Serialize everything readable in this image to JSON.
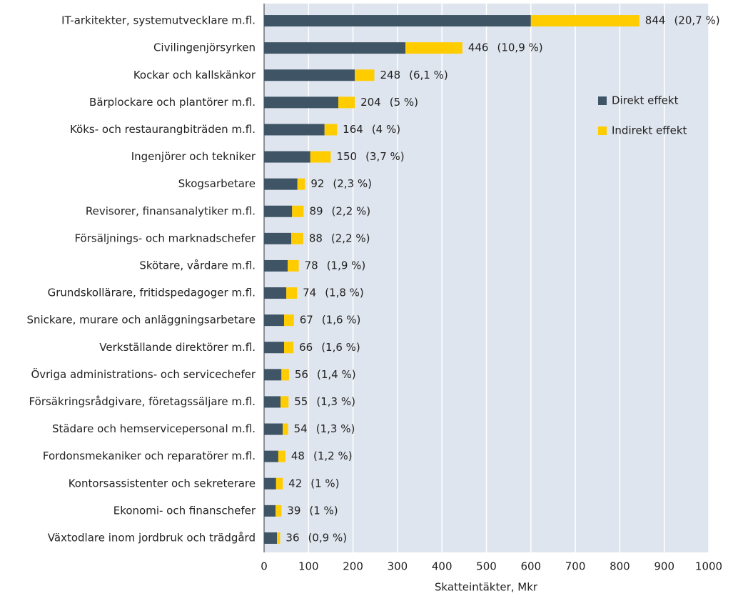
{
  "chart_data": {
    "type": "stacked-bar-horizontal",
    "x_label": "Skatteintäkter, Mkr",
    "categories": [
      "IT-arkitekter, systemutvecklare m.fl.",
      "Civilingenjörsyrken",
      "Kockar och kallskänkor",
      "Bärplockare och plantörer m.fl.",
      "Köks- och restaurangbiträden m.fl.",
      "Ingenjörer och tekniker",
      "Skogsarbetare",
      "Revisorer, finansanalytiker m.fl.",
      "Försäljnings- och marknadschefer",
      "Skötare, vårdare m.fl.",
      "Grundskollärare, fritidspedagoger m.fl.",
      "Snickare, murare och anläggningsarbetare",
      "Verkställande direktörer m.fl.",
      "Övriga administrations- och servicechefer",
      "Försäkringsrådgivare, företagssäljare m.fl.",
      "Städare och hemservicepersonal m.fl.",
      "Fordonsmekaniker och reparatörer m.fl.",
      "Kontorsassistenter och sekreterare",
      "Ekonomi- och finanschefer",
      "Växtodlare inom jordbruk och trädgård"
    ],
    "series": [
      {
        "name": "Direkt effekt",
        "color": "#3f5566",
        "values": [
          600,
          318,
          204,
          167,
          136,
          104,
          75,
          63,
          61,
          53,
          50,
          45,
          45,
          39,
          37,
          42,
          32,
          27,
          26,
          29
        ]
      },
      {
        "name": "Indirekt effekt",
        "color": "#ffcc00",
        "values": [
          244,
          128,
          44,
          37,
          28,
          46,
          17,
          26,
          27,
          25,
          24,
          22,
          21,
          17,
          18,
          12,
          16,
          15,
          13,
          7
        ]
      }
    ],
    "totals": [
      844,
      446,
      248,
      204,
      164,
      150,
      92,
      89,
      88,
      78,
      74,
      67,
      66,
      56,
      55,
      54,
      48,
      42,
      39,
      36
    ],
    "share_labels": [
      "(20,7 %)",
      "(10,9 %)",
      "(6,1 %)",
      "(5 %)",
      "(4 %)",
      "(3,7 %)",
      "(2,3 %)",
      "(2,2 %)",
      "(2,2 %)",
      "(1,9 %)",
      "(1,8 %)",
      "(1,6 %)",
      "(1,6 %)",
      "(1,4 %)",
      "(1,3 %)",
      "(1,3 %)",
      "(1,2 %)",
      "(1 %)",
      "(1 %)",
      "(0,9 %)"
    ],
    "xlim": [
      0,
      1000
    ],
    "xticks": [
      0,
      100,
      200,
      300,
      400,
      500,
      600,
      700,
      800,
      900,
      1000
    ],
    "grid": true,
    "legend": "upper right"
  }
}
